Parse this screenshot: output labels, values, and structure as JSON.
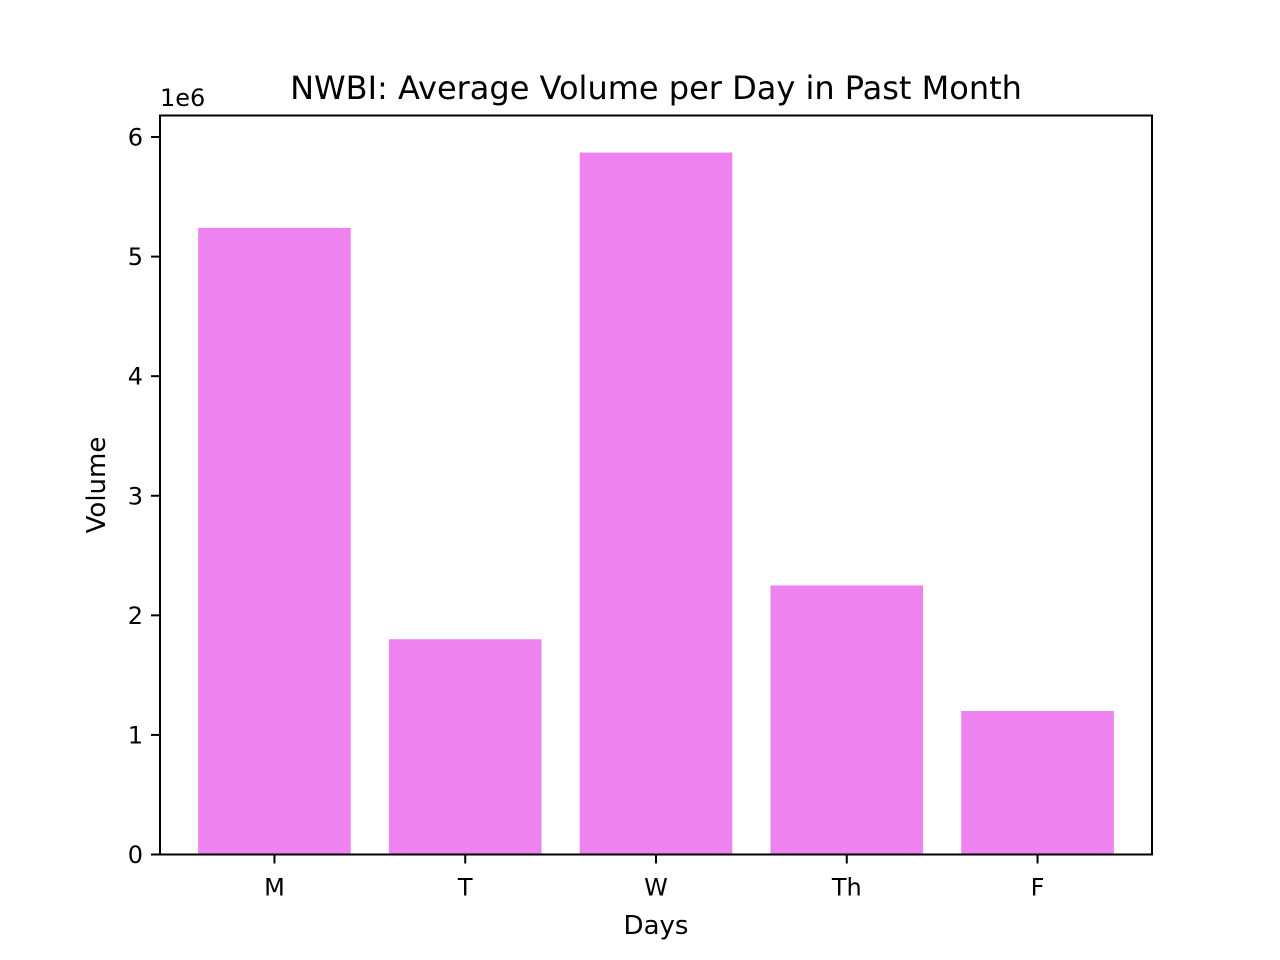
{
  "chart_data": {
    "type": "bar",
    "title": "NWBI: Average Volume per Day in Past Month",
    "xlabel": "Days",
    "ylabel": "Volume",
    "categories": [
      "M",
      "T",
      "W",
      "Th",
      "F"
    ],
    "values": [
      5240000,
      1800000,
      5870000,
      2250000,
      1200000
    ],
    "ylim": [
      0,
      6180000
    ],
    "yticks": [
      0,
      1,
      2,
      3,
      4,
      5,
      6
    ],
    "y_offset_label": "1e6",
    "bar_color": "#ee82ee",
    "grid": false,
    "legend": "none"
  }
}
